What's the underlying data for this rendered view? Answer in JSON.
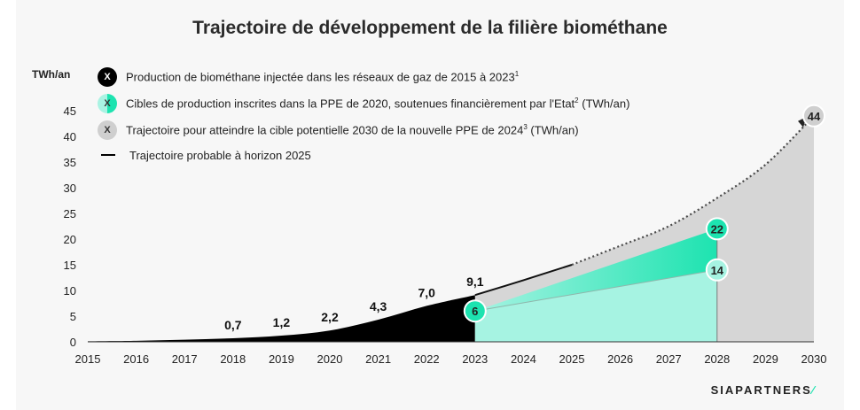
{
  "title": "Trajectoire de développement de la filière biométhane",
  "unit_label": "TWh/an",
  "legend": [
    {
      "icon": "black",
      "letter": "X",
      "text": "Production de biométhane injectée dans les réseaux de gaz de 2015 à 2023",
      "sup": "1",
      "suffix": ""
    },
    {
      "icon": "teal",
      "letter": "X",
      "text": "Cibles de production inscrites dans la PPE de 2020, soutenues financièrement par l'Etat",
      "sup": "2",
      "suffix": " (TWh/an)"
    },
    {
      "icon": "grey",
      "letter": "X",
      "text": "Trajectoire pour atteindre la cible potentielle 2030 de la nouvelle PPE de 2024",
      "sup": "3",
      "suffix": " (TWh/an)"
    },
    {
      "icon": "line",
      "letter": "",
      "text": "Trajectoire probable à horizon 2025",
      "sup": "",
      "suffix": ""
    }
  ],
  "logo": "SIAPARTNERS",
  "colors": {
    "historical": "#000000",
    "ppe2020_low": "#a6f3e2",
    "ppe2020_high": "#1de3b0",
    "ppe2024": "#d6d6d6",
    "trend": "#4a4a4a"
  },
  "chart_data": {
    "type": "area",
    "title": "Trajectoire de développement de la filière biométhane",
    "ylabel": "TWh/an",
    "xlabel": "",
    "xlim": [
      2015,
      2030
    ],
    "ylim": [
      0,
      45
    ],
    "x_ticks": [
      2015,
      2016,
      2017,
      2018,
      2019,
      2020,
      2021,
      2022,
      2023,
      2024,
      2025,
      2026,
      2027,
      2028,
      2029,
      2030
    ],
    "y_ticks": [
      0,
      5,
      10,
      15,
      20,
      25,
      30,
      35,
      40,
      45
    ],
    "grid": false,
    "series": [
      {
        "name": "Production de biométhane injectée dans les réseaux de gaz de 2015 à 2023",
        "x": [
          2015,
          2016,
          2017,
          2018,
          2019,
          2020,
          2021,
          2022,
          2023
        ],
        "values": [
          0.1,
          0.2,
          0.4,
          0.7,
          1.2,
          2.2,
          4.3,
          7.0,
          9.1
        ]
      },
      {
        "name": "Cibles de production inscrites dans la PPE de 2020, soutenues financièrement par l'Etat (TWh/an)",
        "x": [
          2023,
          2028
        ],
        "low": [
          6,
          14
        ],
        "high": [
          6,
          22
        ]
      },
      {
        "name": "Trajectoire pour atteindre la cible potentielle 2030 de la nouvelle PPE de 2024 (TWh/an)",
        "x": [
          2023,
          2024,
          2025,
          2026,
          2027,
          2028,
          2029,
          2030
        ],
        "values": [
          9.1,
          12,
          15,
          18.7,
          22.5,
          28,
          34.5,
          44
        ]
      },
      {
        "name": "Trajectoire probable à horizon 2025",
        "x": [
          2023,
          2024,
          2025
        ],
        "values": [
          9.1,
          12,
          15
        ]
      }
    ],
    "data_labels": [
      {
        "x": 2018,
        "y": 0.7,
        "text": "0,7",
        "style": "plain"
      },
      {
        "x": 2019,
        "y": 1.2,
        "text": "1,2",
        "style": "plain"
      },
      {
        "x": 2020,
        "y": 2.2,
        "text": "2,2",
        "style": "plain"
      },
      {
        "x": 2021,
        "y": 4.3,
        "text": "4,3",
        "style": "plain"
      },
      {
        "x": 2022,
        "y": 7.0,
        "text": "7,0",
        "style": "plain"
      },
      {
        "x": 2023,
        "y": 9.1,
        "text": "9,1",
        "style": "plain"
      },
      {
        "x": 2023,
        "y": 6,
        "text": "6",
        "style": "teal-circle"
      },
      {
        "x": 2028,
        "y": 14,
        "text": "14",
        "style": "light-teal-circle"
      },
      {
        "x": 2028,
        "y": 22,
        "text": "22",
        "style": "teal-circle"
      },
      {
        "x": 2030,
        "y": 44,
        "text": "44",
        "style": "grey-circle"
      }
    ]
  }
}
